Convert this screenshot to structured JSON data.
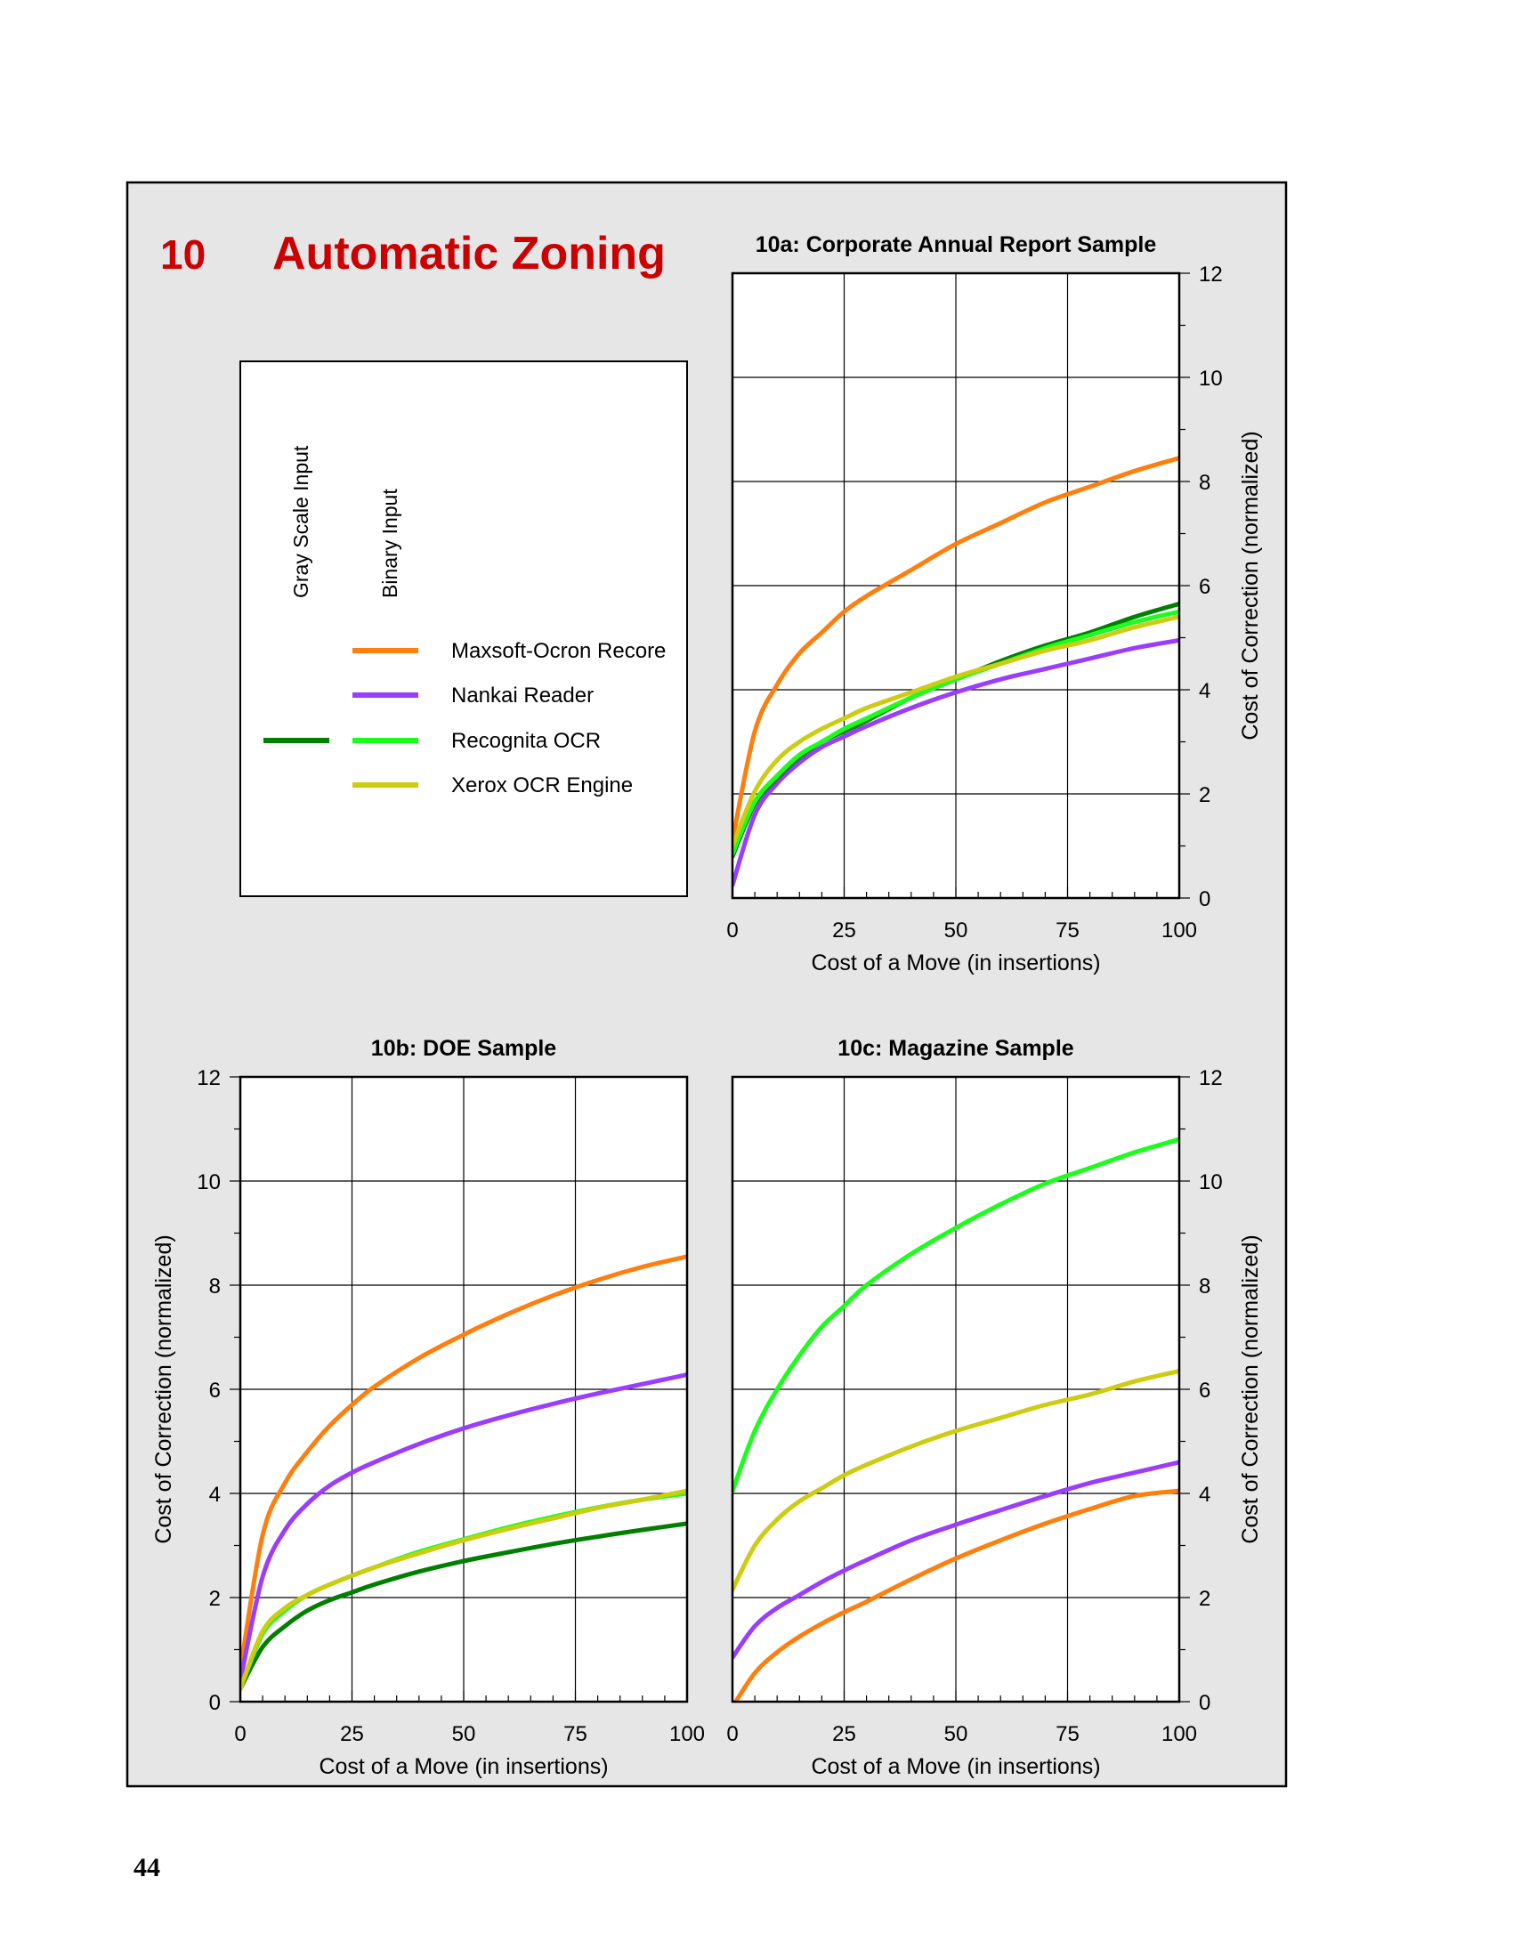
{
  "section": {
    "number": "10",
    "title": "Automatic Zoning",
    "accent_color": "#cc0000",
    "panel_background": "#e6e6e6"
  },
  "legend": {
    "column_headers": [
      "Gray Scale Input",
      "Binary Input"
    ],
    "entries": [
      {
        "label": "Maxsoft-Ocron Recore",
        "gray_color": null,
        "binary_color": "#ff7f0e"
      },
      {
        "label": "Nankai Reader",
        "gray_color": null,
        "binary_color": "#9b3dff"
      },
      {
        "label": "Recognita OCR",
        "gray_color": "#007f00",
        "binary_color": "#1aff1a"
      },
      {
        "label": "Xerox OCR Engine",
        "gray_color": null,
        "binary_color": "#cccc11"
      }
    ]
  },
  "page_number": "44",
  "chart_data": [
    {
      "id": "10a",
      "type": "line",
      "title": "10a:  Corporate Annual Report Sample",
      "xlabel": "Cost of a Move (in insertions)",
      "ylabel": "Cost of Correction (normalized)",
      "xlim": [
        0,
        100
      ],
      "ylim": [
        0,
        12
      ],
      "xticks": [
        0,
        25,
        50,
        75,
        100
      ],
      "yticks": [
        0,
        2,
        4,
        6,
        8,
        10,
        12
      ],
      "grid": true,
      "x": [
        0,
        5,
        10,
        15,
        20,
        25,
        30,
        40,
        50,
        60,
        70,
        80,
        90,
        100
      ],
      "series": [
        {
          "color": "#ff7f0e",
          "values": [
            1.1,
            3.2,
            4.1,
            4.7,
            5.1,
            5.5,
            5.8,
            6.3,
            6.8,
            7.2,
            7.6,
            7.9,
            8.2,
            8.45
          ]
        },
        {
          "color": "#9b3dff",
          "values": [
            0.25,
            1.6,
            2.2,
            2.6,
            2.9,
            3.1,
            3.3,
            3.65,
            3.95,
            4.2,
            4.4,
            4.6,
            4.8,
            4.95
          ]
        },
        {
          "color": "#007f00",
          "values": [
            0.8,
            1.8,
            2.3,
            2.7,
            3.0,
            3.2,
            3.4,
            3.85,
            4.2,
            4.55,
            4.85,
            5.1,
            5.4,
            5.65
          ]
        },
        {
          "color": "#1aff1a",
          "values": [
            0.85,
            1.85,
            2.35,
            2.75,
            3.0,
            3.25,
            3.45,
            3.85,
            4.2,
            4.5,
            4.8,
            5.05,
            5.3,
            5.5
          ]
        },
        {
          "color": "#cccc11",
          "values": [
            1.0,
            2.05,
            2.65,
            3.0,
            3.25,
            3.45,
            3.65,
            3.95,
            4.25,
            4.5,
            4.75,
            4.95,
            5.2,
            5.4
          ]
        }
      ]
    },
    {
      "id": "10b",
      "type": "line",
      "title": "10b:  DOE Sample",
      "xlabel": "Cost of a Move (in insertions)",
      "ylabel": "Cost of Correction (normalized)",
      "xlim": [
        0,
        100
      ],
      "ylim": [
        0,
        12
      ],
      "xticks": [
        0,
        25,
        50,
        75,
        100
      ],
      "yticks": [
        0,
        2,
        4,
        6,
        8,
        10,
        12
      ],
      "grid": true,
      "x": [
        0,
        5,
        10,
        15,
        20,
        25,
        30,
        40,
        50,
        60,
        70,
        80,
        90,
        100
      ],
      "series": [
        {
          "color": "#ff7f0e",
          "values": [
            0.6,
            3.2,
            4.2,
            4.8,
            5.3,
            5.7,
            6.05,
            6.6,
            7.05,
            7.45,
            7.8,
            8.1,
            8.35,
            8.55
          ]
        },
        {
          "color": "#9b3dff",
          "values": [
            0.4,
            2.4,
            3.3,
            3.8,
            4.15,
            4.4,
            4.6,
            4.95,
            5.25,
            5.5,
            5.72,
            5.92,
            6.1,
            6.28
          ]
        },
        {
          "color": "#007f00",
          "values": [
            0.25,
            1.05,
            1.45,
            1.75,
            1.95,
            2.1,
            2.25,
            2.5,
            2.7,
            2.87,
            3.03,
            3.17,
            3.3,
            3.42
          ]
        },
        {
          "color": "#1aff1a",
          "values": [
            0.25,
            1.3,
            1.75,
            2.05,
            2.25,
            2.42,
            2.58,
            2.88,
            3.12,
            3.35,
            3.55,
            3.73,
            3.88,
            4.0
          ]
        },
        {
          "color": "#cccc11",
          "values": [
            0.25,
            1.35,
            1.8,
            2.05,
            2.25,
            2.42,
            2.58,
            2.85,
            3.1,
            3.32,
            3.52,
            3.72,
            3.88,
            4.05
          ]
        }
      ]
    },
    {
      "id": "10c",
      "type": "line",
      "title": "10c:  Magazine Sample",
      "xlabel": "Cost of a Move (in insertions)",
      "ylabel": "Cost of Correction (normalized)",
      "xlim": [
        0,
        100
      ],
      "ylim": [
        0,
        12
      ],
      "xticks": [
        0,
        25,
        50,
        75,
        100
      ],
      "yticks": [
        0,
        2,
        4,
        6,
        8,
        10,
        12
      ],
      "grid": true,
      "x": [
        0,
        5,
        10,
        15,
        20,
        25,
        30,
        40,
        50,
        60,
        70,
        80,
        90,
        100
      ],
      "series": [
        {
          "color": "#ff7f0e",
          "values": [
            -0.1,
            0.55,
            0.95,
            1.25,
            1.5,
            1.72,
            1.92,
            2.35,
            2.75,
            3.1,
            3.42,
            3.7,
            3.95,
            4.05
          ]
        },
        {
          "color": "#9b3dff",
          "values": [
            0.85,
            1.45,
            1.8,
            2.05,
            2.3,
            2.52,
            2.72,
            3.1,
            3.4,
            3.68,
            3.95,
            4.2,
            4.4,
            4.6
          ]
        },
        {
          "color": "#1aff1a",
          "values": [
            4.05,
            5.2,
            6.0,
            6.65,
            7.2,
            7.6,
            8.0,
            8.6,
            9.1,
            9.55,
            9.95,
            10.25,
            10.55,
            10.8
          ]
        },
        {
          "color": "#cccc11",
          "values": [
            2.15,
            3.0,
            3.5,
            3.85,
            4.1,
            4.35,
            4.55,
            4.9,
            5.2,
            5.45,
            5.7,
            5.9,
            6.15,
            6.35
          ]
        }
      ]
    }
  ]
}
